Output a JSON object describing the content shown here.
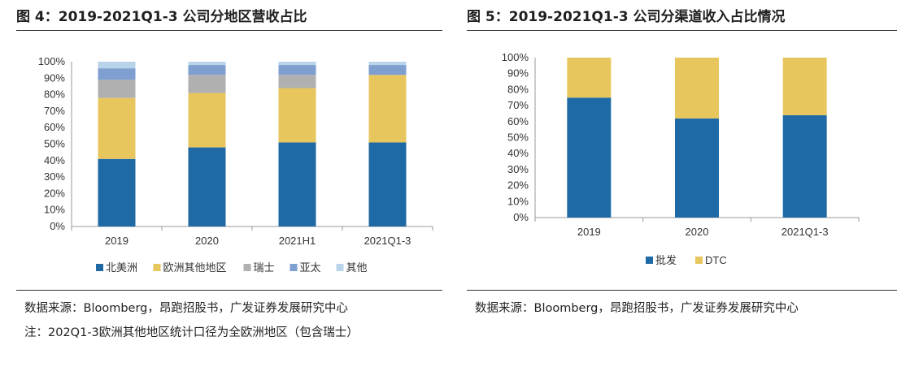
{
  "left": {
    "title": "图 4：2019-2021Q1-3 公司分地区营收占比",
    "source": "数据来源：Bloomberg，昂跑招股书，广发证券发展研究中心",
    "note": "注：202Q1-3欧洲其他地区统计口径为全欧洲地区（包含瑞士）"
  },
  "right": {
    "title": "图 5：2019-2021Q1-3 公司分渠道收入占比情况",
    "source": "数据来源：Bloomberg，昂跑招股书，广发证券发展研究中心"
  },
  "chart_data": [
    {
      "type": "bar",
      "stacked": true,
      "categories": [
        "2019",
        "2020",
        "2021H1",
        "2021Q1-3"
      ],
      "yticks": [
        "0%",
        "10%",
        "20%",
        "30%",
        "40%",
        "50%",
        "60%",
        "70%",
        "80%",
        "90%",
        "100%"
      ],
      "ylim": [
        0,
        100
      ],
      "legend_position": "bottom",
      "series": [
        {
          "name": "北美洲",
          "color": "#1f6aa5",
          "values": [
            41,
            48,
            51,
            51
          ]
        },
        {
          "name": "欧洲其他地区",
          "color": "#e8c65e",
          "values": [
            37,
            33,
            33,
            41
          ]
        },
        {
          "name": "瑞士",
          "color": "#b0b0b0",
          "values": [
            11,
            11,
            8,
            0
          ]
        },
        {
          "name": "亚太",
          "color": "#7e9fd0",
          "values": [
            7,
            6,
            6,
            6
          ]
        },
        {
          "name": "其他",
          "color": "#b9d3ea",
          "values": [
            4,
            2,
            2,
            2
          ]
        }
      ]
    },
    {
      "type": "bar",
      "stacked": true,
      "categories": [
        "2019",
        "2020",
        "2021Q1-3"
      ],
      "yticks": [
        "0%",
        "10%",
        "20%",
        "30%",
        "40%",
        "50%",
        "60%",
        "70%",
        "80%",
        "90%",
        "100%"
      ],
      "ylim": [
        0,
        100
      ],
      "legend_position": "bottom",
      "series": [
        {
          "name": "批发",
          "color": "#1f6aa5",
          "values": [
            75,
            62,
            64
          ]
        },
        {
          "name": "DTC",
          "color": "#e8c65e",
          "values": [
            25,
            38,
            36
          ]
        }
      ]
    }
  ]
}
